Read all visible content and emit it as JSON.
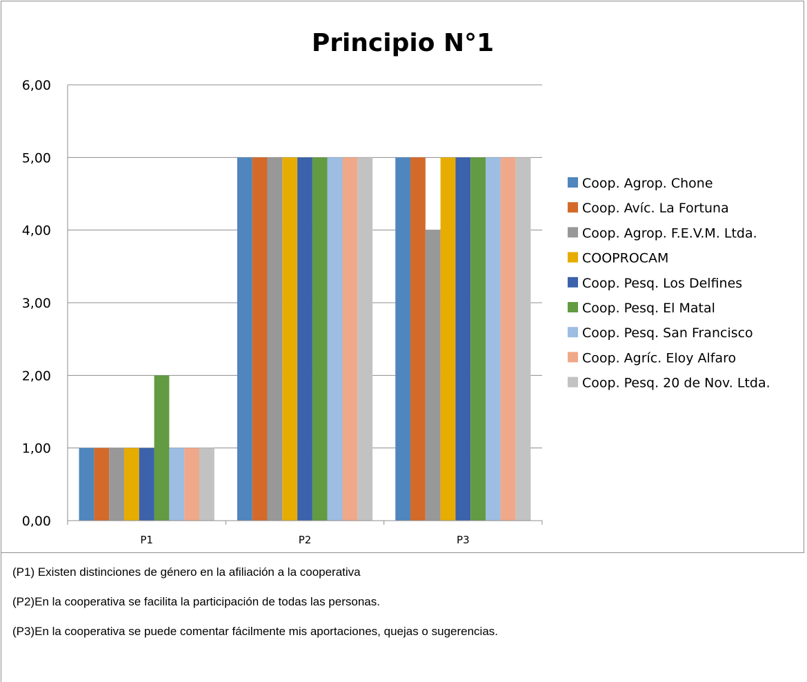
{
  "chart_data": {
    "type": "bar",
    "title": "Principio N°1",
    "categories": [
      "P1",
      "P2",
      "P3"
    ],
    "ylim": [
      0,
      6
    ],
    "yticks": [
      "0,00",
      "1,00",
      "2,00",
      "3,00",
      "4,00",
      "5,00",
      "6,00"
    ],
    "grid": true,
    "legend_position": "right",
    "series": [
      {
        "name": "Coop. Agrop. Chone",
        "color": "#4f86bd",
        "values": [
          1,
          5,
          5
        ]
      },
      {
        "name": "Coop. Avíc. La Fortuna",
        "color": "#d46a2a",
        "values": [
          1,
          5,
          5
        ]
      },
      {
        "name": "Coop. Agrop. F.E.V.M. Ltda.",
        "color": "#989898",
        "values": [
          1,
          5,
          4
        ]
      },
      {
        "name": "COOPROCAM",
        "color": "#e7ac00",
        "values": [
          1,
          5,
          5
        ]
      },
      {
        "name": "Coop. Pesq. Los Delfines",
        "color": "#3b62aa",
        "values": [
          1,
          5,
          5
        ]
      },
      {
        "name": "Coop. Pesq. El Matal",
        "color": "#629b42",
        "values": [
          2,
          5,
          5
        ]
      },
      {
        "name": "Coop. Pesq. San Francisco",
        "color": "#9dbde2",
        "values": [
          1,
          5,
          5
        ]
      },
      {
        "name": "Coop. Agríc. Eloy Alfaro",
        "color": "#f0a88a",
        "values": [
          1,
          5,
          5
        ]
      },
      {
        "name": "Coop. Pesq. 20 de Nov. Ltda.",
        "color": "#c2c2c2",
        "values": [
          1,
          5,
          5
        ]
      }
    ]
  },
  "notes": [
    "(P1) Existen distinciones de género en la afiliación a la cooperativa",
    "(P2)En la cooperativa se facilita la participación de todas las personas.",
    "(P3)En la cooperativa se puede comentar fácilmente mis aportaciones, quejas o sugerencias."
  ]
}
